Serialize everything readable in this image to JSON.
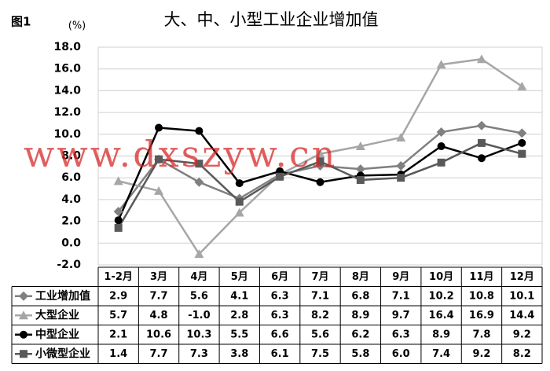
{
  "chart_data": {
    "type": "line",
    "figure_label": "图1",
    "title": "大、中、小型工业企业增加值",
    "y_unit": "(%)",
    "watermark": "www.dxszyw.cn",
    "categories": [
      "1-2月",
      "3月",
      "4月",
      "5月",
      "6月",
      "7月",
      "8月",
      "9月",
      "10月",
      "11月",
      "12月"
    ],
    "series": [
      {
        "name": "工业增加值",
        "color": "#808080",
        "marker": "diamond",
        "values": [
          2.9,
          7.7,
          5.6,
          4.1,
          6.3,
          7.1,
          6.8,
          7.1,
          10.2,
          10.8,
          10.1
        ]
      },
      {
        "name": "大型企业",
        "color": "#a6a6a6",
        "marker": "triangle",
        "values": [
          5.7,
          4.8,
          -1.0,
          2.8,
          6.3,
          8.2,
          8.9,
          9.7,
          16.4,
          16.9,
          14.4
        ],
        "value_labels": [
          "5.7",
          "4.8",
          "-1.0",
          "2.8",
          "6.3",
          "8.2",
          "8.9",
          "9.7",
          "16.4",
          "16.9",
          "14.4"
        ]
      },
      {
        "name": "中型企业",
        "color": "#000000",
        "marker": "circle",
        "values": [
          2.1,
          10.6,
          10.3,
          5.5,
          6.6,
          5.6,
          6.2,
          6.3,
          8.9,
          7.8,
          9.2
        ]
      },
      {
        "name": "小微型企业",
        "color": "#595959",
        "marker": "square",
        "values": [
          1.4,
          7.7,
          7.3,
          3.8,
          6.1,
          7.5,
          5.8,
          6.0,
          7.4,
          9.2,
          8.2
        ],
        "value_labels": [
          "1.4",
          "7.7",
          "7.3",
          "3.8",
          "6.1",
          "7.5",
          "5.8",
          "6.0",
          "7.4",
          "9.2",
          "8.2"
        ]
      }
    ],
    "ylim": [
      -2,
      18
    ],
    "yticks": [
      {
        "value": -2,
        "label": "-2.0"
      },
      {
        "value": 0,
        "label": "0.0"
      },
      {
        "value": 2,
        "label": "2.0"
      },
      {
        "value": 4,
        "label": "4.0"
      },
      {
        "value": 6,
        "label": "6.0"
      },
      {
        "value": 8,
        "label": "8.0"
      },
      {
        "value": 10,
        "label": "10.0"
      },
      {
        "value": 12,
        "label": "12.0"
      },
      {
        "value": 14,
        "label": "14.0"
      },
      {
        "value": 16,
        "label": "16.0"
      },
      {
        "value": 18,
        "label": "18.0"
      }
    ],
    "grid": true
  }
}
